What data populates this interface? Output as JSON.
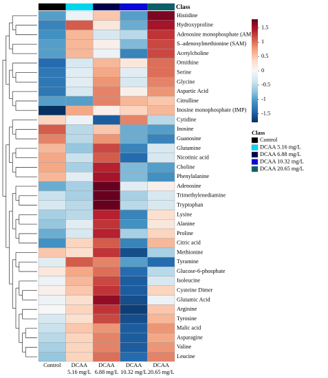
{
  "chart_data": {
    "type": "heatmap",
    "class_bar_label": "Class",
    "columns": [
      "Control",
      "DCAA 5.16 mg/L",
      "DCAA 6.88 mg/L",
      "DCAA 10.32 mg/L",
      "DCAA 20.65 mg/L"
    ],
    "column_labels": [
      {
        "line1": "Control",
        "line2": ""
      },
      {
        "line1": "DCAA",
        "line2": "5.16 mg/L"
      },
      {
        "line1": "DCAA",
        "line2": "6.88 mg/L"
      },
      {
        "line1": "DCAA",
        "line2": "10.32 mg/L"
      },
      {
        "line1": "DCAA",
        "line2": "20.65 mg/L"
      }
    ],
    "rows": [
      "Histidine",
      "Hydroxyproline",
      "Adenosine monophosphate (AMP)",
      "S–adenosylmethionine (SAM)",
      "Acetylcholine",
      "Ornithine",
      "Serine",
      "Glycine",
      "Aspartic Acid",
      "Citrulline",
      "Inosine monophosphate (IMP)",
      "Cytidine",
      "Inosine",
      "Guanosine",
      "Glutamine",
      "Nicotinic acid",
      "Choline",
      "Phenylalanine",
      "Adenosine",
      "Trimethylenediamine",
      "Tryptophan",
      "Lysine",
      "Alanine",
      "Proline",
      "Citric acid",
      "Methionine",
      "Tyramine",
      "Glucose-6-phosphate",
      "Isoleucine",
      "Cysteine Dimer",
      "Glutamic Acid",
      "Arginine",
      "Tyrosine",
      "Malic acid",
      "Asparagine",
      "Valine",
      "Leucine"
    ],
    "values": [
      [
        -1.0,
        -0.1,
        0.5,
        -1.0,
        1.7
      ],
      [
        -1.2,
        1.1,
        0.2,
        -0.9,
        1.5
      ],
      [
        -1.1,
        0.6,
        -0.3,
        -0.5,
        1.3
      ],
      [
        -1.0,
        0.6,
        0.1,
        -0.8,
        1.2
      ],
      [
        -1.0,
        0.6,
        -0.1,
        -1.2,
        1.2
      ],
      [
        -1.4,
        -0.3,
        0.6,
        0.2,
        1.0
      ],
      [
        -1.3,
        -0.2,
        0.7,
        -0.2,
        1.0
      ],
      [
        -1.3,
        -0.2,
        0.8,
        -0.3,
        0.9
      ],
      [
        -1.3,
        -0.3,
        0.9,
        0.1,
        0.8
      ],
      [
        -1.0,
        -1.0,
        0.9,
        0.6,
        0.5
      ],
      [
        -1.8,
        0.7,
        0.1,
        0.4,
        0.6
      ],
      [
        0.4,
        -0.1,
        -1.5,
        0.9,
        -0.5
      ],
      [
        1.1,
        -0.5,
        0.5,
        -0.9,
        -1.0
      ],
      [
        0.9,
        -0.5,
        0.8,
        -0.9,
        -1.2
      ],
      [
        0.6,
        -0.7,
        1.2,
        -1.2,
        -0.3
      ],
      [
        0.7,
        -0.4,
        1.1,
        -1.4,
        -0.3
      ],
      [
        0.7,
        -0.6,
        1.4,
        -0.8,
        -1.0
      ],
      [
        0.6,
        -0.2,
        1.5,
        -0.8,
        -1.1
      ],
      [
        -0.9,
        -0.6,
        1.8,
        -0.2,
        0.1
      ],
      [
        -0.4,
        -0.6,
        1.8,
        -0.6,
        -0.3
      ],
      [
        -0.3,
        -0.5,
        1.9,
        -0.5,
        -0.3
      ],
      [
        -0.6,
        -0.5,
        1.4,
        -1.2,
        0.3
      ],
      [
        -0.7,
        -0.2,
        1.3,
        -1.1,
        0.2
      ],
      [
        -0.9,
        -0.3,
        1.4,
        -0.6,
        0.4
      ],
      [
        -1.1,
        0.4,
        1.1,
        -1.2,
        0.6
      ],
      [
        0.5,
        0.3,
        1.3,
        -1.6,
        -0.6
      ],
      [
        -0.2,
        1.1,
        0.9,
        -1.0,
        -1.4
      ],
      [
        0.2,
        0.7,
        1.0,
        -1.4,
        -0.5
      ],
      [
        -0.1,
        0.6,
        1.2,
        -1.5,
        -0.3
      ],
      [
        0.1,
        0.5,
        1.3,
        -1.5,
        0.4
      ],
      [
        -0.1,
        0.3,
        1.6,
        -1.6,
        -0.1
      ],
      [
        0.0,
        0.4,
        1.3,
        -1.7,
        0.5
      ],
      [
        -0.3,
        0.3,
        1.2,
        -1.6,
        0.6
      ],
      [
        -0.4,
        0.5,
        0.8,
        -1.5,
        0.8
      ],
      [
        -0.5,
        0.4,
        0.9,
        -1.5,
        0.7
      ],
      [
        -0.6,
        0.4,
        0.9,
        -1.5,
        0.8
      ],
      [
        -0.7,
        0.4,
        1.0,
        -1.4,
        0.9
      ]
    ],
    "color_scale": {
      "range": [
        -1.8,
        1.8
      ],
      "stops": [
        "#053061",
        "#2166ac",
        "#4393c3",
        "#92c5de",
        "#d1e5f0",
        "#f7f7f7",
        "#fddbc7",
        "#f4a582",
        "#d6604d",
        "#b2182b",
        "#67001f"
      ]
    },
    "colorbar_ticks": [
      1.5,
      1,
      0.5,
      0,
      -0.5,
      -1,
      -1.5
    ],
    "legend": {
      "title": "Class",
      "placement": "right",
      "items": [
        {
          "label": "Control",
          "color": "#000000"
        },
        {
          "label": "DCAA 5.16 mg/L",
          "color": "#00d7ee"
        },
        {
          "label": "DCAA 6.88 mg/L",
          "color": "#00004a"
        },
        {
          "label": "DCAA 10.32 mg/L",
          "color": "#0a07dc"
        },
        {
          "label": "DCAA 20.65 mg/L",
          "color": "#0e5e67"
        }
      ]
    },
    "class_colors": [
      "#000000",
      "#00d7ee",
      "#00004a",
      "#0a07dc",
      "#0e5e67"
    ],
    "dendrogram": true
  }
}
